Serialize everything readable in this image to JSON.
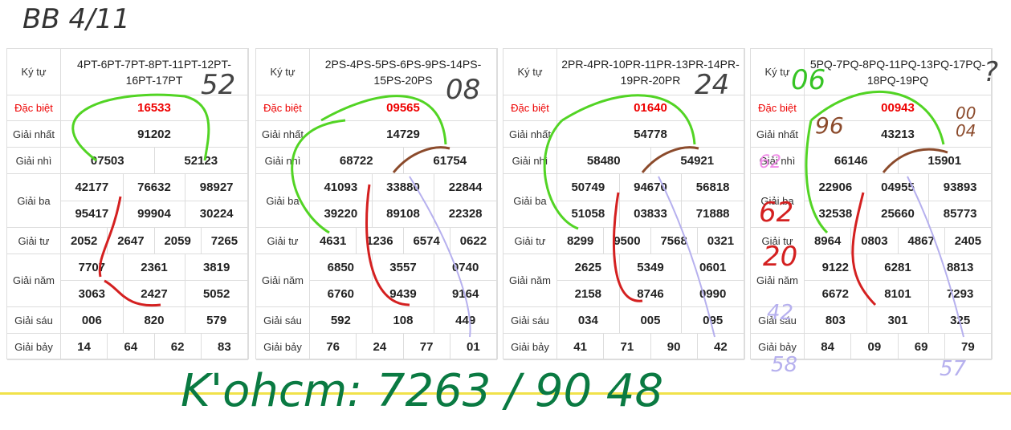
{
  "tables": [
    {
      "rows": [
        {
          "label": "Ký tự",
          "values": [
            "4PT-6PT-7PT-8PT-11PT-12PT-16PT-17PT"
          ]
        },
        {
          "label": "Đặc biệt",
          "values": [
            "16533"
          ]
        },
        {
          "label": "Giải nhất",
          "values": [
            "91202"
          ]
        },
        {
          "label": "Giải nhì",
          "values": [
            "07503",
            "52123"
          ]
        },
        {
          "label": "Giải ba",
          "values": [
            "42177",
            "76632",
            "98927",
            "95417",
            "99904",
            "30224"
          ]
        },
        {
          "label": "Giải tư",
          "values": [
            "2052",
            "2647",
            "2059",
            "7265"
          ]
        },
        {
          "label": "Giải năm",
          "values": [
            "7707",
            "2361",
            "3819",
            "3063",
            "2427",
            "5052"
          ]
        },
        {
          "label": "Giải sáu",
          "values": [
            "006",
            "820",
            "579"
          ]
        },
        {
          "label": "Giải bảy",
          "values": [
            "14",
            "64",
            "62",
            "83"
          ]
        }
      ]
    },
    {
      "rows": [
        {
          "label": "Ký tự",
          "values": [
            "2PS-4PS-5PS-6PS-9PS-14PS-15PS-20PS"
          ]
        },
        {
          "label": "Đặc biệt",
          "values": [
            "09565"
          ]
        },
        {
          "label": "Giải nhất",
          "values": [
            "14729"
          ]
        },
        {
          "label": "Giải nhì",
          "values": [
            "68722",
            "61754"
          ]
        },
        {
          "label": "Giải ba",
          "values": [
            "41093",
            "33880",
            "22844",
            "39220",
            "89108",
            "22328"
          ]
        },
        {
          "label": "Giải tư",
          "values": [
            "4631",
            "1236",
            "6574",
            "0622"
          ]
        },
        {
          "label": "Giải năm",
          "values": [
            "6850",
            "3557",
            "0740",
            "6760",
            "9439",
            "9164"
          ]
        },
        {
          "label": "Giải sáu",
          "values": [
            "592",
            "108",
            "449"
          ]
        },
        {
          "label": "Giải bảy",
          "values": [
            "76",
            "24",
            "77",
            "01"
          ]
        }
      ]
    },
    {
      "rows": [
        {
          "label": "Ký tự",
          "values": [
            "2PR-4PR-10PR-11PR-13PR-14PR-19PR-20PR"
          ]
        },
        {
          "label": "Đặc biệt",
          "values": [
            "01640"
          ]
        },
        {
          "label": "Giải nhất",
          "values": [
            "54778"
          ]
        },
        {
          "label": "Giải nhì",
          "values": [
            "58480",
            "54921"
          ]
        },
        {
          "label": "Giải ba",
          "values": [
            "50749",
            "94670",
            "56818",
            "51058",
            "03833",
            "71888"
          ]
        },
        {
          "label": "Giải tư",
          "values": [
            "8299",
            "9500",
            "7568",
            "0321"
          ]
        },
        {
          "label": "Giải năm",
          "values": [
            "2625",
            "5349",
            "0601",
            "2158",
            "8746",
            "0990"
          ]
        },
        {
          "label": "Giải sáu",
          "values": [
            "034",
            "005",
            "095"
          ]
        },
        {
          "label": "Giải bảy",
          "values": [
            "41",
            "71",
            "90",
            "42"
          ]
        }
      ]
    },
    {
      "rows": [
        {
          "label": "Ký tự",
          "values": [
            "5PQ-7PQ-8PQ-11PQ-13PQ-17PQ-18PQ-19PQ"
          ]
        },
        {
          "label": "Đặc biệt",
          "values": [
            "00943"
          ]
        },
        {
          "label": "Giải nhất",
          "values": [
            "43213"
          ]
        },
        {
          "label": "Giải nhì",
          "values": [
            "66146",
            "15901"
          ]
        },
        {
          "label": "Giải ba",
          "values": [
            "22906",
            "04955",
            "93893",
            "32538",
            "25660",
            "85773"
          ]
        },
        {
          "label": "Giải tư",
          "values": [
            "8964",
            "0803",
            "4867",
            "2405"
          ]
        },
        {
          "label": "Giải năm",
          "values": [
            "9122",
            "6281",
            "8813",
            "6672",
            "8101",
            "7293"
          ]
        },
        {
          "label": "Giải sáu",
          "values": [
            "803",
            "301",
            "325"
          ]
        },
        {
          "label": "Giải bảy",
          "values": [
            "84",
            "09",
            "69",
            "79"
          ]
        }
      ]
    }
  ],
  "annotations": [
    "BB 4/11",
    "52",
    "08",
    "24",
    "06",
    "?",
    "00 04",
    "96",
    "62",
    "62",
    "20",
    "42",
    "58",
    "57",
    "K'ohcm: 7263 / 90 48"
  ]
}
